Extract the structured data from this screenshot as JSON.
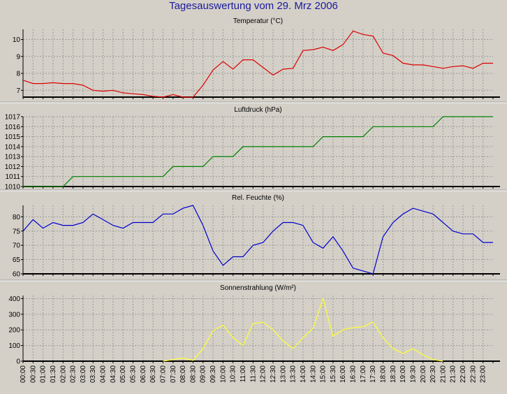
{
  "page": {
    "title": "Tagesauswertung vom 29. Mrz 2006"
  },
  "chart_data": [
    {
      "type": "line",
      "title": "Temperatur (°C)",
      "color": "#dd0000",
      "ylim": [
        6.6,
        10.6
      ],
      "yticks": [
        7,
        8,
        9,
        10
      ],
      "grid": true,
      "x": [
        "00:00",
        "00:30",
        "01:00",
        "01:30",
        "02:00",
        "02:30",
        "03:00",
        "03:30",
        "04:00",
        "04:30",
        "05:00",
        "05:30",
        "06:00",
        "06:30",
        "07:00",
        "07:30",
        "08:00",
        "08:30",
        "09:00",
        "09:30",
        "10:00",
        "10:30",
        "11:00",
        "11:30",
        "12:00",
        "12:30",
        "13:00",
        "13:30",
        "14:00",
        "14:30",
        "15:00",
        "15:30",
        "16:00",
        "16:30",
        "17:00",
        "17:30",
        "18:00",
        "18:30",
        "19:00",
        "19:30",
        "20:00",
        "20:30",
        "21:00",
        "21:30",
        "22:00",
        "22:30",
        "23:00",
        "23:30"
      ],
      "values": [
        7.6,
        7.4,
        7.4,
        7.45,
        7.4,
        7.4,
        7.3,
        7.0,
        6.95,
        7.0,
        6.85,
        6.8,
        6.75,
        6.65,
        6.6,
        6.75,
        6.55,
        6.6,
        7.3,
        8.2,
        8.7,
        8.25,
        8.8,
        8.8,
        8.35,
        7.9,
        8.25,
        8.3,
        9.35,
        9.4,
        9.55,
        9.35,
        9.7,
        10.5,
        10.3,
        10.2,
        9.2,
        9.05,
        8.6,
        8.5,
        8.5,
        8.4,
        8.3,
        8.4,
        8.45,
        8.3,
        8.6,
        8.6
      ]
    },
    {
      "type": "line",
      "title": "Luftdruck (hPa)",
      "color": "#008000",
      "ylim": [
        1010,
        1017
      ],
      "yticks": [
        1010,
        1011,
        1012,
        1013,
        1014,
        1015,
        1016,
        1017
      ],
      "grid": true,
      "x": [
        "00:00",
        "00:30",
        "01:00",
        "01:30",
        "02:00",
        "02:30",
        "03:00",
        "03:30",
        "04:00",
        "04:30",
        "05:00",
        "05:30",
        "06:00",
        "06:30",
        "07:00",
        "07:30",
        "08:00",
        "08:30",
        "09:00",
        "09:30",
        "10:00",
        "10:30",
        "11:00",
        "11:30",
        "12:00",
        "12:30",
        "13:00",
        "13:30",
        "14:00",
        "14:30",
        "15:00",
        "15:30",
        "16:00",
        "16:30",
        "17:00",
        "17:30",
        "18:00",
        "18:30",
        "19:00",
        "19:30",
        "20:00",
        "20:30",
        "21:00",
        "21:30",
        "22:00",
        "22:30",
        "23:00",
        "23:30"
      ],
      "values": [
        1010,
        1010,
        1010,
        1010,
        1010,
        1011,
        1011,
        1011,
        1011,
        1011,
        1011,
        1011,
        1011,
        1011,
        1011,
        1012,
        1012,
        1012,
        1012,
        1013,
        1013,
        1013,
        1014,
        1014,
        1014,
        1014,
        1014,
        1014,
        1014,
        1014,
        1015,
        1015,
        1015,
        1015,
        1015,
        1016,
        1016,
        1016,
        1016,
        1016,
        1016,
        1016,
        1017,
        1017,
        1017,
        1017,
        1017,
        1017
      ]
    },
    {
      "type": "line",
      "title": "Rel. Feuchte (%)",
      "color": "#0000cc",
      "ylim": [
        60,
        84
      ],
      "yticks": [
        60,
        65,
        70,
        75,
        80
      ],
      "grid": true,
      "x": [
        "00:00",
        "00:30",
        "01:00",
        "01:30",
        "02:00",
        "02:30",
        "03:00",
        "03:30",
        "04:00",
        "04:30",
        "05:00",
        "05:30",
        "06:00",
        "06:30",
        "07:00",
        "07:30",
        "08:00",
        "08:30",
        "09:00",
        "09:30",
        "10:00",
        "10:30",
        "11:00",
        "11:30",
        "12:00",
        "12:30",
        "13:00",
        "13:30",
        "14:00",
        "14:30",
        "15:00",
        "15:30",
        "16:00",
        "16:30",
        "17:00",
        "17:30",
        "18:00",
        "18:30",
        "19:00",
        "19:30",
        "20:00",
        "20:30",
        "21:00",
        "21:30",
        "22:00",
        "22:30",
        "23:00",
        "23:30"
      ],
      "values": [
        75,
        79,
        76,
        78,
        77,
        77,
        78,
        81,
        79,
        77,
        76,
        78,
        78,
        78,
        81,
        81,
        83,
        84,
        77,
        68,
        63,
        66,
        66,
        70,
        71,
        75,
        78,
        78,
        77,
        71,
        69,
        73,
        68,
        62,
        61,
        60,
        73,
        78,
        81,
        83,
        82,
        81,
        78,
        75,
        74,
        74,
        71,
        71
      ]
    },
    {
      "type": "line",
      "title": "Sonnenstrahlung (W/m²)",
      "color": "#ffff33",
      "ylim": [
        0,
        420
      ],
      "yticks": [
        0,
        100,
        200,
        300,
        400
      ],
      "grid": true,
      "x": [
        "00:00",
        "00:30",
        "01:00",
        "01:30",
        "02:00",
        "02:30",
        "03:00",
        "03:30",
        "04:00",
        "04:30",
        "05:00",
        "05:30",
        "06:00",
        "06:30",
        "07:00",
        "07:30",
        "08:00",
        "08:30",
        "09:00",
        "09:30",
        "10:00",
        "10:30",
        "11:00",
        "11:30",
        "12:00",
        "12:30",
        "13:00",
        "13:30",
        "14:00",
        "14:30",
        "15:00",
        "15:30",
        "16:00",
        "16:30",
        "17:00",
        "17:30",
        "18:00",
        "18:30",
        "19:00",
        "19:30",
        "20:00",
        "20:30",
        "21:00",
        "21:30",
        "22:00",
        "22:30",
        "23:00",
        "23:30"
      ],
      "values": [
        null,
        null,
        null,
        null,
        null,
        null,
        null,
        null,
        null,
        null,
        null,
        null,
        null,
        null,
        0,
        10,
        20,
        5,
        80,
        195,
        230,
        150,
        100,
        240,
        250,
        200,
        130,
        80,
        150,
        210,
        400,
        160,
        200,
        215,
        220,
        250,
        150,
        80,
        50,
        80,
        40,
        10,
        0,
        null,
        null,
        null,
        null,
        null
      ]
    }
  ],
  "xaxis": {
    "labels": [
      "00:00",
      "00:30",
      "01:00",
      "01:30",
      "02:00",
      "02:30",
      "03:00",
      "03:30",
      "04:00",
      "04:30",
      "05:00",
      "05:30",
      "06:00",
      "06:30",
      "07:00",
      "07:30",
      "08:00",
      "08:30",
      "09:00",
      "09:30",
      "10:00",
      "10:30",
      "11:00",
      "11:30",
      "12:00",
      "12:30",
      "13:00",
      "13:30",
      "14:00",
      "14:30",
      "15:00",
      "15:30",
      "16:00",
      "16:30",
      "17:00",
      "17:30",
      "18:00",
      "18:30",
      "19:00",
      "19:30",
      "20:00",
      "20:30",
      "21:00",
      "21:30",
      "22:00",
      "22:30",
      "23:00"
    ]
  }
}
